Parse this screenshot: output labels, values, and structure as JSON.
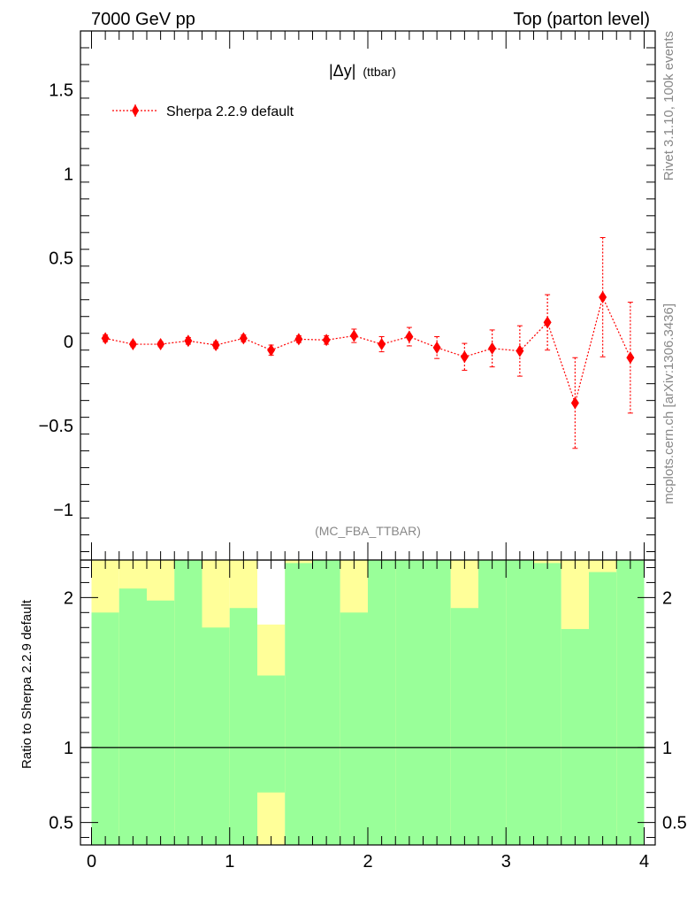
{
  "header": {
    "left": "7000 GeV pp",
    "right": "Top (parton level)"
  },
  "side": {
    "right_top": "Rivet 3.1.10,  100k events",
    "right_bottom": "mcplots.cern.ch [arXiv:1306.3436]"
  },
  "chart_data": [
    {
      "type": "scatter",
      "title": "|Δy| (ttbar)",
      "title_main": "|Δy|",
      "title_sub": "(ttbar)",
      "annotation": "(MC_FBA_TTBAR)",
      "xlim": [
        -0.08,
        4.08
      ],
      "ylim": [
        -1.3,
        1.85
      ],
      "yticks": [
        -1,
        -0.5,
        0,
        0.5,
        1,
        1.5
      ],
      "ytick_labels": [
        "−1",
        "−0.5",
        "0",
        "0.5",
        "1",
        "1.5"
      ],
      "legend_position": "top-left",
      "colors": {
        "series": "#ff0000"
      },
      "series": [
        {
          "name": "Sherpa 2.2.9 default",
          "x": [
            0.1,
            0.3,
            0.5,
            0.7,
            0.9,
            1.1,
            1.3,
            1.5,
            1.7,
            1.9,
            2.1,
            2.3,
            2.5,
            2.7,
            2.9,
            3.1,
            3.3,
            3.5,
            3.7,
            3.9
          ],
          "y": [
            0.02,
            -0.015,
            -0.015,
            0.005,
            -0.02,
            0.02,
            -0.05,
            0.015,
            0.01,
            0.035,
            -0.015,
            0.03,
            -0.035,
            -0.09,
            -0.04,
            -0.055,
            0.115,
            -0.365,
            0.265,
            -0.095
          ],
          "yerr": [
            0.02,
            0.015,
            0.015,
            0.02,
            0.02,
            0.02,
            0.03,
            0.02,
            0.025,
            0.04,
            0.045,
            0.055,
            0.065,
            0.08,
            0.11,
            0.15,
            0.165,
            0.27,
            0.355,
            0.33
          ]
        }
      ]
    },
    {
      "type": "bar",
      "ylabel": "Ratio to Sherpa 2.2.9 default",
      "xlim": [
        -0.08,
        4.08
      ],
      "ylim": [
        0.35,
        2.25
      ],
      "yticks": [
        0.5,
        1,
        2
      ],
      "ytick_labels": [
        "0.5",
        "1",
        "2"
      ],
      "xticks": [
        0,
        1,
        2,
        3,
        4
      ],
      "xtick_labels": [
        "0",
        "1",
        "2",
        "3",
        "4"
      ],
      "reference_line": 1,
      "colors": {
        "stat": "#99ff99",
        "syst": "#ffff99"
      },
      "bins": [
        {
          "x0": 0.0,
          "x1": 0.2,
          "green": [
            0.35,
            1.9
          ],
          "yellow": [
            0.35,
            2.25
          ]
        },
        {
          "x0": 0.2,
          "x1": 0.4,
          "green": [
            0.35,
            2.06
          ],
          "yellow": [
            0.35,
            2.25
          ]
        },
        {
          "x0": 0.4,
          "x1": 0.6,
          "green": [
            0.35,
            1.98
          ],
          "yellow": [
            0.35,
            2.25
          ]
        },
        {
          "x0": 0.6,
          "x1": 0.8,
          "green": [
            0.35,
            2.25
          ],
          "yellow": [
            0.35,
            2.25
          ]
        },
        {
          "x0": 0.8,
          "x1": 1.0,
          "green": [
            0.35,
            1.8
          ],
          "yellow": [
            0.35,
            2.25
          ]
        },
        {
          "x0": 1.0,
          "x1": 1.2,
          "green": [
            0.35,
            1.93
          ],
          "yellow": [
            0.35,
            2.25
          ]
        },
        {
          "x0": 1.2,
          "x1": 1.4,
          "green": [
            0.7,
            1.48
          ],
          "yellow": [
            0.35,
            1.82
          ]
        },
        {
          "x0": 1.4,
          "x1": 1.6,
          "green": [
            0.35,
            2.23
          ],
          "yellow": [
            0.35,
            2.25
          ]
        },
        {
          "x0": 1.6,
          "x1": 1.8,
          "green": [
            0.35,
            2.25
          ],
          "yellow": [
            0.35,
            2.25
          ]
        },
        {
          "x0": 1.8,
          "x1": 2.0,
          "green": [
            0.35,
            1.9
          ],
          "yellow": [
            0.35,
            2.25
          ]
        },
        {
          "x0": 2.0,
          "x1": 2.2,
          "green": [
            0.35,
            2.25
          ],
          "yellow": [
            0.35,
            2.25
          ]
        },
        {
          "x0": 2.2,
          "x1": 2.4,
          "green": [
            0.35,
            2.25
          ],
          "yellow": [
            0.35,
            2.25
          ]
        },
        {
          "x0": 2.4,
          "x1": 2.6,
          "green": [
            0.35,
            2.25
          ],
          "yellow": [
            0.35,
            2.25
          ]
        },
        {
          "x0": 2.6,
          "x1": 2.8,
          "green": [
            0.35,
            1.93
          ],
          "yellow": [
            0.35,
            2.25
          ]
        },
        {
          "x0": 2.8,
          "x1": 3.0,
          "green": [
            0.35,
            2.25
          ],
          "yellow": [
            0.35,
            2.25
          ]
        },
        {
          "x0": 3.0,
          "x1": 3.2,
          "green": [
            0.35,
            2.25
          ],
          "yellow": [
            0.35,
            2.25
          ]
        },
        {
          "x0": 3.2,
          "x1": 3.4,
          "green": [
            0.35,
            2.23
          ],
          "yellow": [
            0.35,
            2.25
          ]
        },
        {
          "x0": 3.4,
          "x1": 3.6,
          "green": [
            0.35,
            1.79
          ],
          "yellow": [
            0.35,
            2.25
          ]
        },
        {
          "x0": 3.6,
          "x1": 3.8,
          "green": [
            0.35,
            2.17
          ],
          "yellow": [
            0.35,
            2.25
          ]
        },
        {
          "x0": 3.8,
          "x1": 4.0,
          "green": [
            0.35,
            2.25
          ],
          "yellow": [
            0.35,
            2.25
          ]
        }
      ]
    }
  ]
}
